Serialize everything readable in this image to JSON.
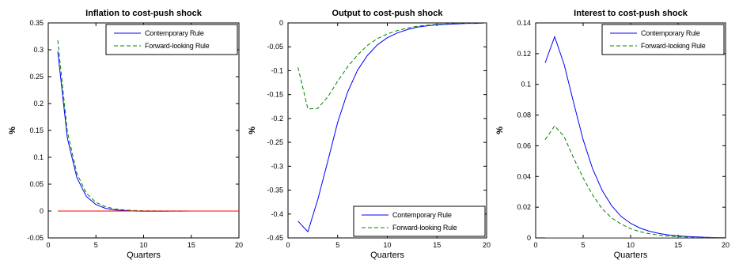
{
  "chart_data": [
    {
      "type": "line",
      "title": "Inflation to cost-push shock",
      "xlabel": "Quarters",
      "ylabel": "%",
      "xlim": [
        0,
        20
      ],
      "ylim": [
        -0.05,
        0.35
      ],
      "xticks": [
        0,
        5,
        10,
        15,
        20
      ],
      "yticks": [
        -0.05,
        0,
        0.05,
        0.1,
        0.15,
        0.2,
        0.25,
        0.3,
        0.35
      ],
      "legend_position": "top-right",
      "x": [
        1,
        2,
        3,
        4,
        5,
        6,
        7,
        8,
        9,
        10,
        11,
        12,
        13,
        14,
        15,
        16,
        17,
        18,
        19,
        20
      ],
      "series": [
        {
          "name": "Contemporary Rule",
          "color": "#0000ff",
          "style": "solid",
          "values": [
            0.297,
            0.136,
            0.062,
            0.027,
            0.012,
            0.005,
            0.002,
            0.001,
            0.0,
            -0.0005,
            -0.0005,
            -0.0003,
            -0.0002,
            -0.0001,
            0,
            0,
            0,
            0,
            0,
            0
          ]
        },
        {
          "name": "Forward-looking Rule",
          "color": "#008000",
          "style": "dashed",
          "values": [
            0.318,
            0.148,
            0.07,
            0.033,
            0.016,
            0.008,
            0.004,
            0.002,
            0.001,
            0.0005,
            0.0003,
            0.0002,
            0.0001,
            0.0001,
            0,
            0,
            0,
            0,
            0,
            0
          ]
        },
        {
          "color": "#ff0000",
          "style": "solid",
          "values": [
            0,
            0,
            0,
            0,
            0,
            0,
            0,
            0,
            0,
            0,
            0,
            0,
            0,
            0,
            0,
            0,
            0,
            0,
            0,
            0
          ]
        }
      ]
    },
    {
      "type": "line",
      "title": "Output to cost-push shock",
      "xlabel": "Quarters",
      "ylabel": "%",
      "xlim": [
        0,
        20
      ],
      "ylim": [
        -0.45,
        0
      ],
      "xticks": [
        0,
        5,
        10,
        15,
        20
      ],
      "yticks": [
        -0.45,
        -0.4,
        -0.35,
        -0.3,
        -0.25,
        -0.2,
        -0.15,
        -0.1,
        -0.05,
        0
      ],
      "legend_position": "bottom-right",
      "x": [
        1,
        2,
        3,
        4,
        5,
        6,
        7,
        8,
        9,
        10,
        11,
        12,
        13,
        14,
        15,
        16,
        17,
        18,
        19,
        20
      ],
      "series": [
        {
          "name": "Contemporary Rule",
          "color": "#0000ff",
          "style": "solid",
          "values": [
            -0.415,
            -0.437,
            -0.37,
            -0.29,
            -0.208,
            -0.145,
            -0.099,
            -0.068,
            -0.046,
            -0.031,
            -0.021,
            -0.014,
            -0.009,
            -0.006,
            -0.004,
            -0.003,
            -0.002,
            -0.001,
            -0.001,
            0
          ]
        },
        {
          "name": "Forward-looking Rule",
          "color": "#008000",
          "style": "dashed",
          "values": [
            -0.093,
            -0.18,
            -0.179,
            -0.155,
            -0.122,
            -0.092,
            -0.067,
            -0.047,
            -0.033,
            -0.023,
            -0.016,
            -0.011,
            -0.007,
            -0.005,
            -0.003,
            -0.002,
            -0.001,
            -0.001,
            0,
            0
          ]
        }
      ]
    },
    {
      "type": "line",
      "title": "Interest to cost-push shock",
      "xlabel": "Quarters",
      "ylabel": "%",
      "xlim": [
        0,
        20
      ],
      "ylim": [
        0,
        0.14
      ],
      "xticks": [
        0,
        5,
        10,
        15,
        20
      ],
      "yticks": [
        0,
        0.02,
        0.04,
        0.06,
        0.08,
        0.1,
        0.12,
        0.14
      ],
      "legend_position": "top-right",
      "x": [
        1,
        2,
        3,
        4,
        5,
        6,
        7,
        8,
        9,
        10,
        11,
        12,
        13,
        14,
        15,
        16,
        17,
        18,
        19,
        20
      ],
      "series": [
        {
          "name": "Contemporary Rule",
          "color": "#0000ff",
          "style": "solid",
          "values": [
            0.114,
            0.131,
            0.113,
            0.088,
            0.064,
            0.045,
            0.031,
            0.021,
            0.014,
            0.0095,
            0.0064,
            0.0043,
            0.0029,
            0.0019,
            0.0013,
            0.0009,
            0.0006,
            0.0004,
            0.0002,
            0.0001
          ]
        },
        {
          "name": "Forward-looking Rule",
          "color": "#008000",
          "style": "dashed",
          "values": [
            0.064,
            0.073,
            0.066,
            0.052,
            0.039,
            0.028,
            0.019,
            0.013,
            0.009,
            0.006,
            0.004,
            0.0027,
            0.0018,
            0.0012,
            0.0008,
            0.0005,
            0.0003,
            0.0002,
            0.0001,
            0.0001
          ]
        },
        {
          "color": "#ff0000",
          "style": "solid",
          "values": [
            0,
            0,
            0,
            0,
            0,
            0,
            0,
            0,
            0,
            0,
            0,
            0,
            0,
            0,
            0,
            0,
            0,
            0,
            0,
            0
          ]
        }
      ]
    }
  ]
}
